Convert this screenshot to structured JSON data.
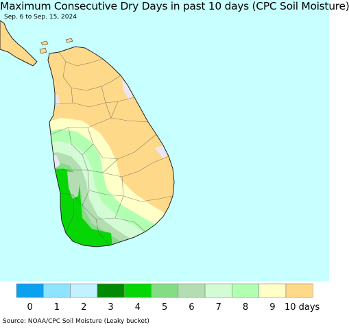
{
  "title": "Maximum Consecutive Dry Days in past 10 days (CPC Soil Moisture)",
  "subtitle": "Sep. 6 to Sep. 15, 2024",
  "source": "Source: NOAA/CPC Soil Moisture (Leaky bucket)",
  "colors": {
    "ocean": "#c8ffff",
    "island_default": "#ffd98a",
    "no_data": "#ece6f2"
  },
  "legend": {
    "items": [
      {
        "label": "0",
        "color": "#0ca0f0"
      },
      {
        "label": "1",
        "color": "#8ee4ff"
      },
      {
        "label": "2",
        "color": "#c2f2ff"
      },
      {
        "label": "3",
        "color": "#038a03"
      },
      {
        "label": "4",
        "color": "#06d606"
      },
      {
        "label": "5",
        "color": "#84dc84"
      },
      {
        "label": "6",
        "color": "#b2deb2"
      },
      {
        "label": "7",
        "color": "#d4fcd4"
      },
      {
        "label": "8",
        "color": "#b2ffb2"
      },
      {
        "label": "9",
        "color": "#ffffc8"
      },
      {
        "label": "",
        "color": "#ffd98a"
      }
    ],
    "last_label": "10 days"
  }
}
